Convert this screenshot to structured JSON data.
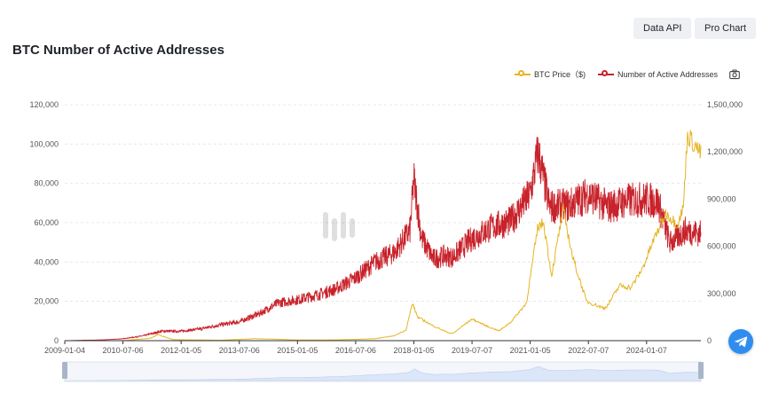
{
  "buttons": {
    "data_api": "Data API",
    "pro_chart": "Pro Chart"
  },
  "colors": {
    "price": "#e6b422",
    "addresses": "#c8222b",
    "button_bg": "#eef0f3",
    "telegram": "#2f8df0"
  },
  "icons": {
    "legend_camera": "camera-icon",
    "telegram": "telegram-icon",
    "watermark": "coinglass-logo"
  },
  "chart_data": {
    "type": "line",
    "title": "BTC Number of Active Addresses",
    "legend": {
      "position": "top-right",
      "items": [
        "BTC Price（$)",
        "Number of Active Addresses"
      ]
    },
    "x_tick_labels": [
      "2009-01-04",
      "2010-07-06",
      "2012-01-05",
      "2013-07-06",
      "2015-01-05",
      "2016-07-06",
      "2018-01-05",
      "2019-07-07",
      "2021-01-05",
      "2022-07-07",
      "2024-01-07"
    ],
    "x_ticks": [
      2009.0,
      2010.5,
      2012.0,
      2013.5,
      2015.0,
      2016.5,
      2018.0,
      2019.5,
      2021.0,
      2022.5,
      2024.0
    ],
    "x_range": [
      2009.0,
      2025.4
    ],
    "left_axis": {
      "ticks": [
        0,
        20000,
        40000,
        60000,
        80000,
        100000,
        120000
      ],
      "labels": [
        "0",
        "20,000",
        "40,000",
        "60,000",
        "80,000",
        "100,000",
        "120,000"
      ],
      "range": [
        0,
        120000
      ]
    },
    "right_axis": {
      "ticks": [
        0,
        300000,
        600000,
        900000,
        1200000,
        1500000
      ],
      "labels": [
        "0",
        "300,000",
        "600,000",
        "900,000",
        "1,200,000",
        "1,500,000"
      ],
      "range": [
        0,
        1500000
      ]
    },
    "grid": "horizontal dashed",
    "series": [
      {
        "name": "Number of Active Addresses",
        "axis": "right",
        "style": "noisy daily line",
        "x": [
          2009.0,
          2010.0,
          2010.5,
          2011.0,
          2011.5,
          2012.0,
          2012.5,
          2013.0,
          2013.5,
          2014.0,
          2014.5,
          2015.0,
          2015.5,
          2016.0,
          2016.5,
          2017.0,
          2017.5,
          2017.9,
          2018.0,
          2018.2,
          2018.5,
          2018.8,
          2019.0,
          2019.5,
          2020.0,
          2020.5,
          2021.0,
          2021.2,
          2021.5,
          2022.0,
          2022.5,
          2023.0,
          2023.5,
          2024.0,
          2024.3,
          2024.6,
          2025.0,
          2025.4
        ],
        "values": [
          0,
          5000,
          12000,
          30000,
          60000,
          60000,
          75000,
          100000,
          120000,
          170000,
          240000,
          260000,
          290000,
          330000,
          400000,
          500000,
          560000,
          700000,
          1030000,
          650000,
          520000,
          540000,
          530000,
          650000,
          720000,
          760000,
          930000,
          1200000,
          850000,
          860000,
          930000,
          850000,
          890000,
          900000,
          880000,
          620000,
          700000,
          680000
        ]
      },
      {
        "name": "BTC Price（$)",
        "axis": "left",
        "x": [
          2009.0,
          2010.5,
          2011.2,
          2011.4,
          2011.8,
          2013.0,
          2013.9,
          2014.5,
          2015.0,
          2016.0,
          2016.5,
          2017.0,
          2017.5,
          2017.8,
          2017.96,
          2018.1,
          2018.5,
          2018.9,
          2019.0,
          2019.5,
          2019.9,
          2020.2,
          2020.5,
          2020.9,
          2021.2,
          2021.35,
          2021.55,
          2021.85,
          2022.1,
          2022.45,
          2022.9,
          2023.0,
          2023.3,
          2023.6,
          2023.9,
          2024.2,
          2024.5,
          2024.8,
          2024.95,
          2025.05,
          2025.4
        ],
        "values": [
          0,
          0,
          1200,
          3000,
          500,
          200,
          1000,
          700,
          300,
          400,
          650,
          1000,
          2500,
          5500,
          19000,
          12000,
          7500,
          4000,
          3600,
          11000,
          7200,
          5000,
          9500,
          19000,
          58000,
          60000,
          33000,
          67000,
          42000,
          20000,
          16500,
          18000,
          28000,
          27000,
          37000,
          52000,
          65000,
          59000,
          68000,
          105000,
          95000
        ]
      }
    ]
  }
}
